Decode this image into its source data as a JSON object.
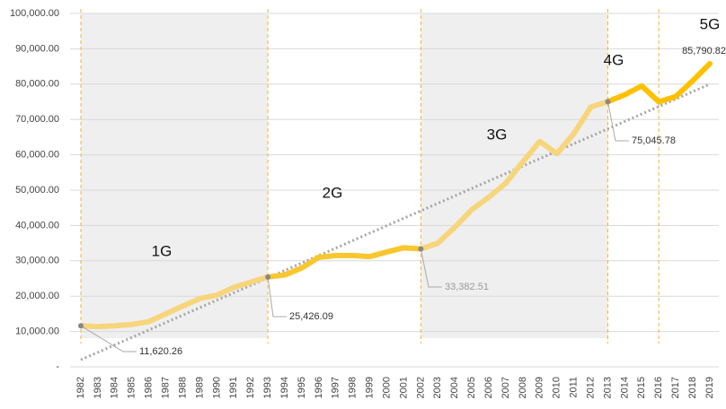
{
  "chart_data": {
    "type": "line",
    "categories": [
      "1982",
      "1983",
      "1984",
      "1985",
      "1986",
      "1987",
      "1988",
      "1989",
      "1990",
      "1991",
      "1992",
      "1993",
      "1994",
      "1995",
      "1996",
      "1997",
      "1998",
      "1999",
      "2000",
      "2001",
      "2002",
      "2003",
      "2004",
      "2005",
      "2006",
      "2007",
      "2008",
      "2009",
      "2010",
      "2011",
      "2012",
      "2013",
      "2014",
      "2015",
      "2016",
      "2017",
      "2018",
      "2019"
    ],
    "series": [
      {
        "values": [
          11620.26,
          11400,
          11600,
          12000,
          12800,
          15000,
          17200,
          19300,
          20300,
          22500,
          24000,
          25426.09,
          26000,
          28000,
          31000,
          31500,
          31500,
          31200,
          32500,
          33700,
          33382.51,
          35000,
          39500,
          44500,
          48000,
          52000,
          58000,
          63800,
          60300,
          66000,
          73500,
          75045.78,
          77000,
          79500,
          75000,
          76500,
          81000,
          85790.82
        ]
      }
    ],
    "eras": [
      {
        "label": "1G",
        "from": "1982",
        "to": "1993",
        "color": "#f6d57c",
        "shaded": true
      },
      {
        "label": "2G",
        "from": "1993",
        "to": "2002",
        "color": "#f8c62e",
        "shaded": false
      },
      {
        "label": "3G",
        "from": "2002",
        "to": "2013",
        "color": "#f6d57c",
        "shaded": true
      },
      {
        "label": "4G",
        "from": "2013",
        "to": "2016",
        "color": "#ffc000",
        "shaded": false
      },
      {
        "label": "5G",
        "from": "2016",
        "to": "2019",
        "color": "#ffc000",
        "shaded": false
      }
    ],
    "annotations": [
      {
        "x": "1982",
        "label": "11,620.26"
      },
      {
        "x": "1993",
        "label": "25,426.09"
      },
      {
        "x": "2002",
        "label": "33,382.51"
      },
      {
        "x": "2013",
        "label": "75,045.78"
      },
      {
        "x": "2019",
        "label": "85,790.82"
      }
    ],
    "trendline": {
      "from": "1982",
      "to": "2019",
      "values": [
        2000,
        80000
      ],
      "color": "#a6a6a6"
    },
    "ylim": [
      0,
      100000
    ],
    "yticks": [
      {
        "value": 0,
        "label": "-"
      },
      {
        "value": 10000,
        "label": "10,000.00"
      },
      {
        "value": 20000,
        "label": "20,000.00"
      },
      {
        "value": 30000,
        "label": "30,000.00"
      },
      {
        "value": 40000,
        "label": "40,000.00"
      },
      {
        "value": 50000,
        "label": "50,000.00"
      },
      {
        "value": 60000,
        "label": "60,000.00"
      },
      {
        "value": 70000,
        "label": "70,000.00"
      },
      {
        "value": 80000,
        "label": "80,000.00"
      },
      {
        "value": 90000,
        "label": "90,000.00"
      },
      {
        "value": 100000,
        "label": "100,000.00"
      }
    ],
    "grid": true
  }
}
